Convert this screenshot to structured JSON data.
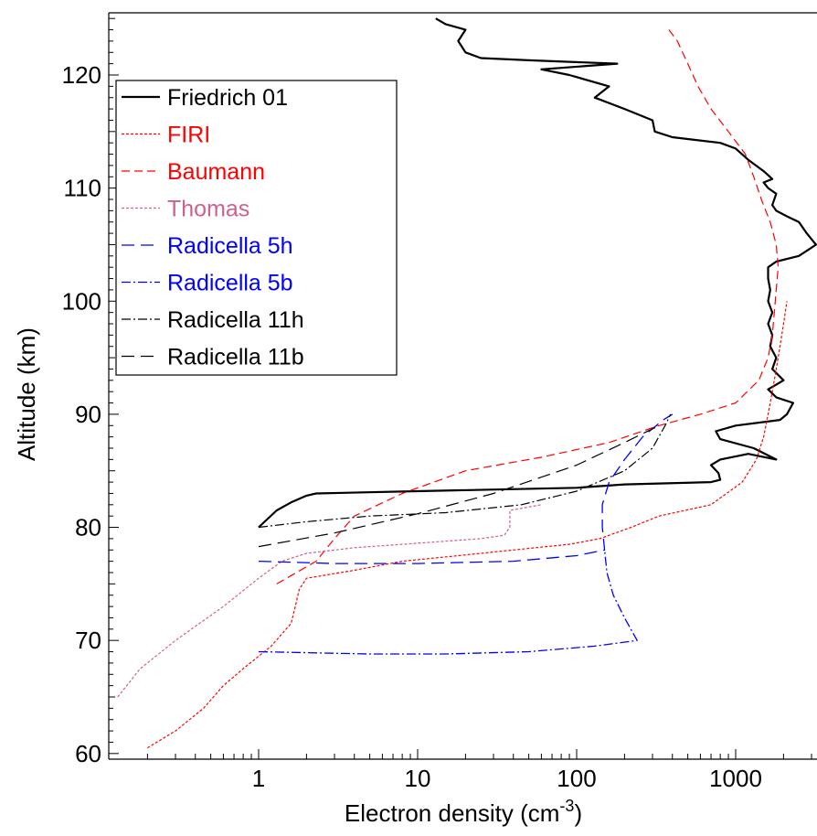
{
  "chart_data": {
    "type": "line",
    "xlabel": "Electron density (cm",
    "xlabel_sup": "-3",
    "xlabel_end": ")",
    "ylabel": "Altitude (km)",
    "x_scale": "log",
    "xlim": [
      0.12,
      3000
    ],
    "ylim": [
      59.5,
      125.5
    ],
    "x_ticks": [
      {
        "value": 1,
        "label": "1"
      },
      {
        "value": 10,
        "label": "10"
      },
      {
        "value": 100,
        "label": "100"
      },
      {
        "value": 1000,
        "label": "1000"
      }
    ],
    "y_ticks": [
      {
        "value": 60,
        "label": "60"
      },
      {
        "value": 70,
        "label": "70"
      },
      {
        "value": 80,
        "label": "80"
      },
      {
        "value": 90,
        "label": "90"
      },
      {
        "value": 100,
        "label": "100"
      },
      {
        "value": 110,
        "label": "110"
      },
      {
        "value": 120,
        "label": "120"
      }
    ],
    "grid": false,
    "legend_position": "top-left",
    "series": [
      {
        "name": "Friedrich 01",
        "color": "#000000",
        "dash": "solid",
        "width": 2.2,
        "points": [
          [
            1,
            80
          ],
          [
            1.3,
            81.5
          ],
          [
            1.6,
            82.2
          ],
          [
            2,
            82.8
          ],
          [
            2.3,
            83
          ],
          [
            10,
            83.2
          ],
          [
            100,
            83.5
          ],
          [
            200,
            83.8
          ],
          [
            700,
            84
          ],
          [
            800,
            84.2
          ],
          [
            780,
            84.8
          ],
          [
            700,
            85.5
          ],
          [
            800,
            86
          ],
          [
            1200,
            86.5
          ],
          [
            1800,
            86
          ],
          [
            1300,
            87
          ],
          [
            800,
            87.8
          ],
          [
            750,
            88.5
          ],
          [
            1000,
            89
          ],
          [
            1900,
            89.5
          ],
          [
            2100,
            90
          ],
          [
            2300,
            91
          ],
          [
            1800,
            91.5
          ],
          [
            1600,
            92.2
          ],
          [
            2000,
            93
          ],
          [
            1700,
            94
          ],
          [
            1800,
            95
          ],
          [
            1650,
            96
          ],
          [
            1700,
            97
          ],
          [
            1600,
            98
          ],
          [
            1700,
            99
          ],
          [
            1600,
            100
          ],
          [
            1650,
            101
          ],
          [
            1600,
            102
          ],
          [
            1600,
            103
          ],
          [
            1800,
            103.5
          ],
          [
            2500,
            104
          ],
          [
            3200,
            105
          ],
          [
            2800,
            106
          ],
          [
            2500,
            107
          ],
          [
            2100,
            107.5
          ],
          [
            1800,
            108
          ],
          [
            1700,
            108.5
          ],
          [
            1800,
            109.5
          ],
          [
            1600,
            110
          ],
          [
            1500,
            110.5
          ],
          [
            1700,
            110.8
          ],
          [
            1500,
            111.5
          ],
          [
            1200,
            112.5
          ],
          [
            1000,
            113.5
          ],
          [
            800,
            114
          ],
          [
            400,
            114.5
          ],
          [
            310,
            115
          ],
          [
            300,
            116
          ],
          [
            200,
            117
          ],
          [
            130,
            118
          ],
          [
            160,
            119
          ],
          [
            90,
            120
          ],
          [
            60,
            120.5
          ],
          [
            180,
            121
          ],
          [
            50,
            121.3
          ],
          [
            25,
            121.5
          ],
          [
            20,
            122
          ],
          [
            18,
            123
          ],
          [
            20,
            124
          ],
          [
            15,
            124.5
          ],
          [
            13,
            125
          ]
        ]
      },
      {
        "name": "FIRI",
        "color": "#ff0000",
        "dash": "3,2",
        "width": 1.2,
        "points": [
          [
            0.2,
            60.5
          ],
          [
            0.3,
            62
          ],
          [
            0.45,
            64
          ],
          [
            0.6,
            66
          ],
          [
            0.8,
            67.5
          ],
          [
            1.2,
            69.5
          ],
          [
            1.6,
            71.5
          ],
          [
            1.7,
            73
          ],
          [
            1.8,
            74.5
          ],
          [
            2,
            75.5
          ],
          [
            4,
            76.2
          ],
          [
            8,
            77
          ],
          [
            18,
            77.5
          ],
          [
            40,
            78
          ],
          [
            90,
            78.5
          ],
          [
            140,
            79
          ],
          [
            220,
            80
          ],
          [
            330,
            81
          ],
          [
            700,
            82
          ],
          [
            1100,
            84
          ],
          [
            1350,
            86
          ],
          [
            1500,
            88
          ],
          [
            1600,
            90
          ],
          [
            1700,
            92
          ],
          [
            1800,
            94
          ],
          [
            1900,
            96
          ],
          [
            2000,
            98
          ],
          [
            2100,
            100
          ]
        ]
      },
      {
        "name": "Baumann",
        "color": "#ff0000",
        "dash": "9,5",
        "width": 1.2,
        "points": [
          [
            1.3,
            75
          ],
          [
            2.3,
            77
          ],
          [
            3,
            79
          ],
          [
            4,
            81
          ],
          [
            8,
            83
          ],
          [
            20,
            85
          ],
          [
            60,
            86.2
          ],
          [
            160,
            87.5
          ],
          [
            330,
            89
          ],
          [
            600,
            90
          ],
          [
            1000,
            91
          ],
          [
            1400,
            93
          ],
          [
            1600,
            95
          ],
          [
            1700,
            97
          ],
          [
            1750,
            99
          ],
          [
            1800,
            101
          ],
          [
            1850,
            103
          ],
          [
            1800,
            105
          ],
          [
            1650,
            107
          ],
          [
            1450,
            109
          ],
          [
            1300,
            111
          ],
          [
            1150,
            113
          ],
          [
            900,
            115
          ],
          [
            700,
            117
          ],
          [
            580,
            119
          ],
          [
            500,
            121
          ],
          [
            430,
            123
          ],
          [
            380,
            124
          ]
        ]
      },
      {
        "name": "Thomas",
        "color": "#d0608e",
        "dash": "3,2",
        "width": 1.2,
        "points": [
          [
            0.13,
            65
          ],
          [
            0.18,
            67.5
          ],
          [
            0.3,
            70
          ],
          [
            0.6,
            73
          ],
          [
            1,
            75.5
          ],
          [
            1.4,
            77
          ],
          [
            2,
            77.7
          ],
          [
            4,
            78.2
          ],
          [
            10,
            78.6
          ],
          [
            25,
            79
          ],
          [
            35,
            79.3
          ],
          [
            38,
            80
          ],
          [
            38,
            81.5
          ],
          [
            60,
            82
          ]
        ]
      },
      {
        "name": "Radicella 5h",
        "color": "#0000ff",
        "dash": "14,7",
        "width": 1.3,
        "points": [
          [
            1,
            77
          ],
          [
            3,
            76.8
          ],
          [
            10,
            76.8
          ],
          [
            40,
            77
          ],
          [
            100,
            77.5
          ],
          [
            150,
            78
          ],
          [
            145,
            80
          ],
          [
            145,
            82
          ],
          [
            160,
            84
          ],
          [
            200,
            86
          ],
          [
            260,
            88
          ],
          [
            350,
            89.5
          ],
          [
            400,
            90
          ]
        ]
      },
      {
        "name": "Radicella 5b",
        "color": "#0000ff",
        "dash": "10,3,2,3",
        "width": 1.3,
        "points": [
          [
            1,
            69
          ],
          [
            5,
            68.8
          ],
          [
            15,
            68.8
          ],
          [
            50,
            69
          ],
          [
            130,
            69.5
          ],
          [
            240,
            70
          ],
          [
            200,
            72
          ],
          [
            170,
            74
          ],
          [
            155,
            76
          ],
          [
            150,
            78
          ]
        ]
      },
      {
        "name": "Radicella 11h",
        "color": "#000000",
        "dash": "10,3,2,3",
        "width": 1.2,
        "points": [
          [
            1,
            80
          ],
          [
            2,
            80.5
          ],
          [
            5,
            81
          ],
          [
            15,
            81.3
          ],
          [
            45,
            82
          ],
          [
            100,
            83.2
          ],
          [
            200,
            85
          ],
          [
            300,
            87
          ],
          [
            360,
            89
          ],
          [
            390,
            90
          ]
        ]
      },
      {
        "name": "Radicella 11b",
        "color": "#000000",
        "dash": "14,7",
        "width": 1.2,
        "points": [
          [
            1,
            78.3
          ],
          [
            3,
            79.5
          ],
          [
            10,
            81.2
          ],
          [
            30,
            83
          ],
          [
            100,
            85.5
          ],
          [
            200,
            87.5
          ],
          [
            330,
            89
          ]
        ]
      }
    ]
  }
}
